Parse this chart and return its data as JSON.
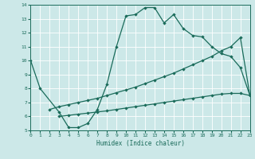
{
  "xlabel": "Humidex (Indice chaleur)",
  "xlim": [
    0,
    23
  ],
  "ylim": [
    5,
    14
  ],
  "xticks": [
    0,
    1,
    2,
    3,
    4,
    5,
    6,
    7,
    8,
    9,
    10,
    11,
    12,
    13,
    14,
    15,
    16,
    17,
    18,
    19,
    20,
    21,
    22,
    23
  ],
  "yticks": [
    5,
    6,
    7,
    8,
    9,
    10,
    11,
    12,
    13,
    14
  ],
  "bg_color": "#cce8e8",
  "line_color": "#1a6b5a",
  "grid_color": "#b0d0d0",
  "s1_x": [
    0,
    1,
    3,
    4,
    5,
    6,
    7,
    8,
    9,
    10,
    11,
    12,
    13,
    14,
    15,
    16,
    17,
    18,
    19,
    20,
    21,
    22,
    23
  ],
  "s1_y": [
    10.0,
    8.0,
    6.3,
    5.2,
    5.2,
    5.5,
    6.5,
    8.3,
    11.0,
    13.2,
    13.3,
    13.8,
    13.8,
    12.7,
    13.3,
    12.3,
    11.8,
    11.7,
    11.0,
    10.5,
    10.3,
    9.5,
    7.5
  ],
  "s2_x": [
    2,
    3,
    4,
    5,
    6,
    7,
    8,
    9,
    10,
    11,
    12,
    13,
    14,
    15,
    16,
    17,
    18,
    19,
    20,
    21,
    22,
    23
  ],
  "s2_y": [
    6.5,
    6.7,
    6.85,
    7.0,
    7.15,
    7.3,
    7.5,
    7.7,
    7.9,
    8.1,
    8.35,
    8.6,
    8.85,
    9.1,
    9.4,
    9.7,
    10.0,
    10.3,
    10.7,
    11.0,
    11.65,
    7.5
  ],
  "s3_x": [
    3,
    4,
    5,
    6,
    7,
    8,
    9,
    10,
    11,
    12,
    13,
    14,
    15,
    16,
    17,
    18,
    19,
    20,
    21,
    22,
    23
  ],
  "s3_y": [
    6.0,
    6.08,
    6.16,
    6.24,
    6.32,
    6.4,
    6.5,
    6.6,
    6.7,
    6.8,
    6.9,
    7.0,
    7.1,
    7.2,
    7.3,
    7.4,
    7.5,
    7.6,
    7.65,
    7.65,
    7.5
  ]
}
